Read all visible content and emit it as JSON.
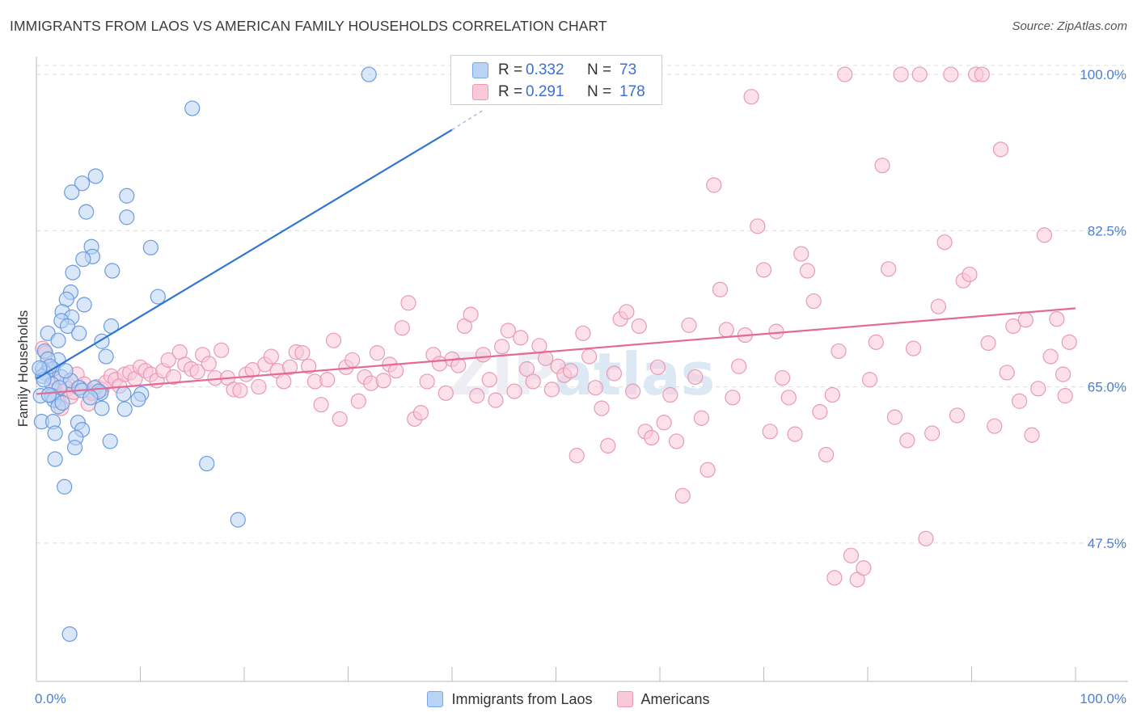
{
  "title": "IMMIGRANTS FROM LAOS VS AMERICAN FAMILY HOUSEHOLDS CORRELATION CHART",
  "source": "Source: ZipAtlas.com",
  "legend_top": {
    "rows": [
      {
        "r_label": "R = ",
        "r_value": "0.332",
        "n_label": "N = ",
        "n_value": "73"
      },
      {
        "r_label": "R = ",
        "r_value": "0.291",
        "n_label": "N = ",
        "n_value": "178"
      }
    ]
  },
  "legend_bottom": {
    "items": [
      {
        "label": "Immigrants from Laos"
      },
      {
        "label": "Americans"
      }
    ]
  },
  "colors": {
    "blue_fill": "#b9d3f4",
    "blue_stroke": "#6a9be0",
    "blue_line": "#2f74d0",
    "pink_fill": "#f9c9d8",
    "pink_stroke": "#e89ab5",
    "pink_line": "#e46a93",
    "grid": "#dcdcdc",
    "tick_text": "#4a7fd4"
  },
  "chart_data": {
    "type": "scatter",
    "title": "IMMIGRANTS FROM LAOS VS AMERICAN FAMILY HOUSEHOLDS CORRELATION CHART",
    "xlabel": "",
    "ylabel": "Family Households",
    "xlim": [
      0,
      100
    ],
    "ylim": [
      32,
      102
    ],
    "x_tick_labels": [
      "0.0%",
      "100.0%"
    ],
    "y_ticks": [
      47.5,
      65.0,
      82.5,
      100.0
    ],
    "y_tick_labels": [
      "47.5%",
      "65.0%",
      "82.5%",
      "100.0%"
    ],
    "watermark": "ZIPatlas",
    "series": [
      {
        "name": "Immigrants from Laos",
        "color": "#6a9be0",
        "trend": {
          "x": [
            0.0,
            40.0
          ],
          "y": [
            65.9,
            93.8
          ],
          "dashed_to": [
            43.0,
            96.0
          ]
        },
        "points": [
          [
            32.0,
            100.0
          ],
          [
            15.0,
            96.2
          ],
          [
            5.7,
            88.6
          ],
          [
            4.4,
            87.8
          ],
          [
            3.4,
            86.8
          ],
          [
            8.7,
            86.4
          ],
          [
            4.8,
            84.6
          ],
          [
            8.7,
            84.0
          ],
          [
            11.0,
            80.6
          ],
          [
            5.3,
            80.7
          ],
          [
            5.4,
            79.6
          ],
          [
            4.5,
            79.3
          ],
          [
            7.3,
            78.0
          ],
          [
            3.5,
            77.8
          ],
          [
            11.7,
            75.1
          ],
          [
            3.3,
            75.6
          ],
          [
            2.9,
            74.8
          ],
          [
            4.6,
            74.2
          ],
          [
            2.5,
            73.4
          ],
          [
            3.4,
            72.8
          ],
          [
            2.4,
            72.4
          ],
          [
            7.2,
            71.8
          ],
          [
            3.0,
            71.8
          ],
          [
            4.1,
            71.0
          ],
          [
            1.1,
            71.0
          ],
          [
            6.3,
            70.1
          ],
          [
            2.1,
            70.2
          ],
          [
            0.8,
            69.0
          ],
          [
            6.7,
            68.4
          ],
          [
            2.1,
            68.0
          ],
          [
            1.1,
            68.1
          ],
          [
            0.6,
            67.0
          ],
          [
            1.6,
            67.0
          ],
          [
            0.9,
            66.5
          ],
          [
            2.4,
            66.1
          ],
          [
            0.6,
            66.2
          ],
          [
            3.3,
            65.7
          ],
          [
            1.5,
            65.3
          ],
          [
            2.2,
            64.9
          ],
          [
            4.1,
            64.9
          ],
          [
            4.4,
            64.6
          ],
          [
            5.6,
            64.9
          ],
          [
            6.2,
            64.3
          ],
          [
            8.4,
            64.2
          ],
          [
            10.1,
            64.2
          ],
          [
            0.4,
            64.0
          ],
          [
            1.5,
            64.0
          ],
          [
            6.0,
            64.5
          ],
          [
            1.7,
            63.5
          ],
          [
            2.1,
            62.8
          ],
          [
            2.5,
            63.2
          ],
          [
            6.3,
            62.6
          ],
          [
            8.5,
            62.5
          ],
          [
            5.2,
            63.8
          ],
          [
            0.5,
            61.1
          ],
          [
            1.6,
            61.1
          ],
          [
            4.0,
            61.0
          ],
          [
            4.4,
            60.2
          ],
          [
            1.8,
            59.8
          ],
          [
            3.8,
            59.3
          ],
          [
            7.1,
            58.9
          ],
          [
            3.7,
            58.2
          ],
          [
            1.8,
            56.9
          ],
          [
            16.4,
            56.4
          ],
          [
            2.7,
            53.8
          ],
          [
            19.4,
            50.1
          ],
          [
            3.2,
            37.3
          ],
          [
            0.7,
            65.8
          ],
          [
            1.2,
            64.1
          ],
          [
            2.8,
            66.8
          ],
          [
            9.8,
            63.6
          ],
          [
            1.3,
            67.3
          ],
          [
            0.3,
            67.1
          ]
        ]
      },
      {
        "name": "Americans",
        "color": "#e89ab5",
        "trend": {
          "x": [
            0.0,
            100.0
          ],
          "y": [
            64.2,
            73.8
          ]
        },
        "points": [
          [
            0.6,
            69.3
          ],
          [
            0.9,
            68.8
          ],
          [
            1.2,
            67.2
          ],
          [
            1.6,
            66.0
          ],
          [
            1.8,
            64.6
          ],
          [
            2.1,
            63.5
          ],
          [
            2.4,
            62.6
          ],
          [
            2.7,
            65.2
          ],
          [
            3.0,
            64.8
          ],
          [
            3.3,
            63.9
          ],
          [
            3.6,
            64.4
          ],
          [
            3.9,
            66.4
          ],
          [
            4.2,
            64.9
          ],
          [
            4.6,
            65.3
          ],
          [
            5.0,
            63.1
          ],
          [
            5.4,
            64.3
          ],
          [
            5.8,
            65.0
          ],
          [
            6.3,
            64.7
          ],
          [
            6.7,
            65.5
          ],
          [
            7.2,
            66.2
          ],
          [
            7.6,
            65.8
          ],
          [
            8.0,
            65.1
          ],
          [
            8.5,
            66.4
          ],
          [
            9.0,
            66.6
          ],
          [
            9.5,
            65.9
          ],
          [
            10.0,
            67.2
          ],
          [
            10.5,
            66.8
          ],
          [
            11.0,
            66.4
          ],
          [
            11.6,
            65.7
          ],
          [
            12.2,
            66.8
          ],
          [
            12.7,
            68.0
          ],
          [
            13.2,
            66.1
          ],
          [
            13.8,
            68.9
          ],
          [
            14.3,
            67.5
          ],
          [
            14.9,
            67.0
          ],
          [
            15.5,
            66.7
          ],
          [
            16.0,
            68.6
          ],
          [
            16.6,
            67.6
          ],
          [
            17.2,
            66.0
          ],
          [
            17.8,
            69.1
          ],
          [
            18.4,
            66.0
          ],
          [
            19.0,
            64.7
          ],
          [
            19.6,
            64.6
          ],
          [
            20.2,
            66.4
          ],
          [
            20.8,
            66.9
          ],
          [
            21.4,
            65.0
          ],
          [
            22.0,
            67.5
          ],
          [
            22.6,
            68.4
          ],
          [
            23.2,
            66.8
          ],
          [
            23.8,
            65.6
          ],
          [
            24.4,
            67.2
          ],
          [
            25.0,
            68.9
          ],
          [
            25.6,
            68.8
          ],
          [
            26.2,
            67.3
          ],
          [
            26.8,
            65.6
          ],
          [
            27.4,
            63.0
          ],
          [
            28.0,
            65.8
          ],
          [
            28.6,
            70.2
          ],
          [
            29.2,
            61.4
          ],
          [
            29.8,
            67.2
          ],
          [
            30.4,
            68.0
          ],
          [
            31.0,
            63.4
          ],
          [
            31.6,
            66.1
          ],
          [
            32.2,
            65.4
          ],
          [
            32.8,
            68.8
          ],
          [
            33.4,
            65.7
          ],
          [
            34.0,
            67.5
          ],
          [
            34.6,
            66.8
          ],
          [
            35.2,
            71.6
          ],
          [
            35.8,
            74.4
          ],
          [
            36.4,
            61.4
          ],
          [
            37.0,
            62.1
          ],
          [
            37.6,
            65.6
          ],
          [
            38.2,
            68.6
          ],
          [
            38.8,
            67.6
          ],
          [
            39.4,
            64.3
          ],
          [
            40.0,
            68.1
          ],
          [
            40.6,
            67.4
          ],
          [
            41.2,
            71.8
          ],
          [
            41.8,
            73.1
          ],
          [
            42.4,
            64.0
          ],
          [
            43.0,
            68.6
          ],
          [
            43.6,
            65.8
          ],
          [
            44.2,
            63.5
          ],
          [
            44.8,
            69.5
          ],
          [
            45.4,
            71.3
          ],
          [
            46.0,
            64.5
          ],
          [
            46.6,
            70.5
          ],
          [
            47.2,
            67.0
          ],
          [
            47.8,
            65.6
          ],
          [
            48.4,
            69.6
          ],
          [
            49.0,
            68.2
          ],
          [
            49.6,
            64.7
          ],
          [
            50.2,
            67.3
          ],
          [
            50.8,
            66.3
          ],
          [
            51.4,
            66.8
          ],
          [
            52.0,
            57.3
          ],
          [
            52.6,
            71.0
          ],
          [
            53.2,
            68.4
          ],
          [
            53.8,
            64.9
          ],
          [
            54.4,
            62.6
          ],
          [
            55.0,
            58.4
          ],
          [
            55.6,
            66.5
          ],
          [
            56.2,
            72.6
          ],
          [
            56.8,
            73.4
          ],
          [
            57.4,
            64.5
          ],
          [
            58.0,
            71.8
          ],
          [
            58.6,
            60.0
          ],
          [
            59.2,
            59.3
          ],
          [
            59.8,
            67.2
          ],
          [
            60.4,
            61.0
          ],
          [
            61.0,
            64.1
          ],
          [
            61.6,
            58.9
          ],
          [
            62.2,
            52.8
          ],
          [
            62.8,
            71.9
          ],
          [
            63.4,
            66.1
          ],
          [
            64.0,
            61.5
          ],
          [
            64.6,
            55.7
          ],
          [
            65.2,
            87.6
          ],
          [
            65.8,
            75.9
          ],
          [
            66.4,
            71.4
          ],
          [
            67.0,
            63.8
          ],
          [
            67.6,
            67.3
          ],
          [
            68.2,
            70.8
          ],
          [
            68.8,
            97.5
          ],
          [
            69.4,
            83.0
          ],
          [
            70.0,
            78.1
          ],
          [
            70.6,
            60.0
          ],
          [
            71.2,
            71.2
          ],
          [
            71.8,
            66.0
          ],
          [
            72.4,
            63.8
          ],
          [
            73.0,
            59.7
          ],
          [
            73.6,
            79.9
          ],
          [
            74.2,
            78.0
          ],
          [
            74.8,
            74.6
          ],
          [
            75.4,
            62.2
          ],
          [
            76.0,
            57.4
          ],
          [
            76.6,
            64.1
          ],
          [
            77.2,
            69.0
          ],
          [
            77.8,
            100.0
          ],
          [
            78.4,
            46.1
          ],
          [
            79.0,
            43.4
          ],
          [
            79.6,
            44.7
          ],
          [
            80.2,
            65.8
          ],
          [
            80.8,
            70.0
          ],
          [
            81.4,
            89.8
          ],
          [
            82.0,
            78.2
          ],
          [
            82.6,
            61.6
          ],
          [
            83.2,
            100.0
          ],
          [
            83.8,
            59.0
          ],
          [
            84.4,
            69.3
          ],
          [
            85.0,
            100.0
          ],
          [
            85.6,
            48.0
          ],
          [
            86.2,
            59.8
          ],
          [
            86.8,
            74.0
          ],
          [
            87.4,
            81.2
          ],
          [
            88.0,
            100.0
          ],
          [
            88.6,
            61.8
          ],
          [
            89.2,
            76.9
          ],
          [
            89.8,
            77.6
          ],
          [
            90.4,
            100.0
          ],
          [
            91.0,
            100.0
          ],
          [
            91.6,
            69.9
          ],
          [
            92.2,
            60.6
          ],
          [
            92.8,
            91.6
          ],
          [
            93.4,
            66.6
          ],
          [
            94.0,
            71.8
          ],
          [
            94.6,
            63.4
          ],
          [
            95.2,
            72.5
          ],
          [
            95.8,
            59.6
          ],
          [
            96.4,
            64.8
          ],
          [
            97.0,
            82.0
          ],
          [
            97.6,
            68.4
          ],
          [
            98.2,
            72.6
          ],
          [
            98.8,
            66.4
          ],
          [
            99.4,
            70.0
          ],
          [
            76.8,
            43.6
          ],
          [
            99.0,
            64.0
          ]
        ]
      }
    ]
  }
}
